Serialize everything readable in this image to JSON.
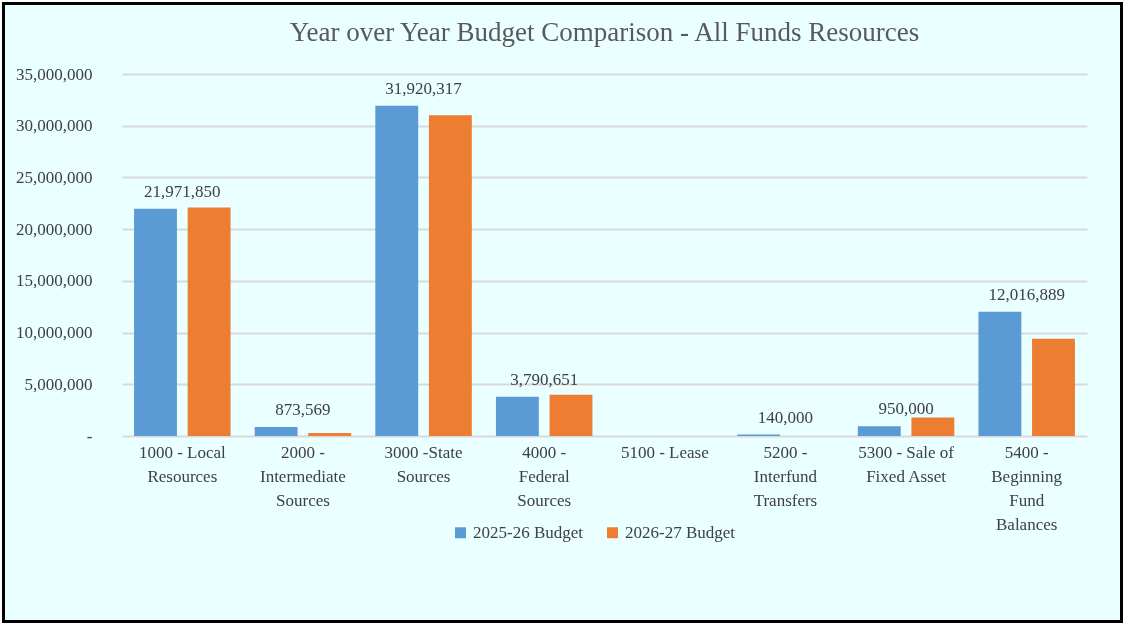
{
  "chart_data": {
    "type": "bar",
    "title": "Year over Year Budget Comparison  - All Funds Resources",
    "categories": [
      "1000 - Local\nResources",
      "2000 -\nIntermediate\nSources",
      "3000 -State\nSources",
      "4000 -\nFederal\nSources",
      "5100 - Lease",
      "5200 -\nInterfund\nTransfers",
      "5300 - Sale of\nFixed Asset",
      "5400 -\nBeginning\nFund\nBalances"
    ],
    "series": [
      {
        "name": "2025-26 Budget",
        "color": "#5b9bd5",
        "values": [
          21971850,
          873569,
          31920317,
          3790651,
          0,
          140000,
          950000,
          12016889
        ],
        "value_labels": [
          "21,971,850",
          "873,569",
          "31,920,317",
          "3,790,651",
          null,
          "140,000",
          "950,000",
          "12,016,889"
        ]
      },
      {
        "name": "2026-27 Budget",
        "color": "#ed7d31",
        "values": [
          22100000,
          300000,
          31000000,
          4000000,
          0,
          0,
          1800000,
          9400000
        ]
      }
    ],
    "ylim": [
      0,
      35000000
    ],
    "yticks": [
      {
        "value": 0,
        "label": "-"
      },
      {
        "value": 5000000,
        "label": "5,000,000"
      },
      {
        "value": 10000000,
        "label": "10,000,000"
      },
      {
        "value": 15000000,
        "label": "15,000,000"
      },
      {
        "value": 20000000,
        "label": "20,000,000"
      },
      {
        "value": 25000000,
        "label": "25,000,000"
      },
      {
        "value": 30000000,
        "label": "30,000,000"
      },
      {
        "value": 35000000,
        "label": "35,000,000"
      }
    ],
    "grid": "y",
    "legend": "bottom"
  }
}
